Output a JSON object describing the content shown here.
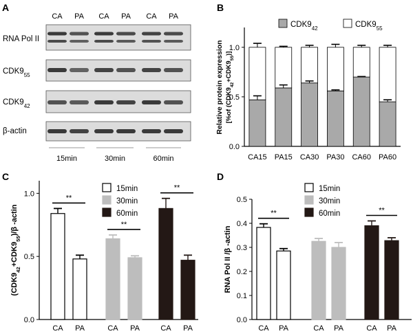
{
  "panels": {
    "A": "A",
    "B": "B",
    "C": "C",
    "D": "D"
  },
  "colors": {
    "white": "#ffffff",
    "gray": "#bdbdbd",
    "dark": "#231815",
    "stackGray": "#a9a9a9",
    "blotBg": "#dcdcdc",
    "band": "#3a3a3a"
  },
  "blot": {
    "lane_labels": [
      "CA",
      "PA",
      "CA",
      "PA",
      "CA",
      "PA"
    ],
    "rows": [
      {
        "label": "RNA Pol II",
        "sub": ""
      },
      {
        "label": "CDK9",
        "sub": "55"
      },
      {
        "label": "CDK9",
        "sub": "42"
      },
      {
        "label": "β-actin",
        "sub": ""
      }
    ],
    "time_labels": [
      "15min",
      "30min",
      "60min"
    ]
  },
  "chart_data": [
    {
      "panel": "B",
      "type": "bar",
      "stacked": true,
      "categories": [
        "CA15",
        "PA15",
        "CA30",
        "PA30",
        "CA60",
        "PA60"
      ],
      "series": [
        {
          "name": "CDK9₄₂",
          "values": [
            0.47,
            0.59,
            0.64,
            0.56,
            0.7,
            0.45
          ],
          "errors": [
            0.04,
            0.03,
            0.02,
            0.01,
            0.005,
            0.02
          ]
        },
        {
          "name": "CDK9₅₅",
          "values": [
            0.53,
            0.41,
            0.36,
            0.44,
            0.3,
            0.55
          ],
          "errors": [
            0.04,
            0.01,
            0.02,
            0.03,
            0.02,
            0.02
          ]
        }
      ],
      "legend": [
        {
          "base": "CDK9",
          "sub": "42"
        },
        {
          "base": "CDK9",
          "sub": "55"
        }
      ],
      "ylabel_line1": "Relative protein expression",
      "ylabel_line2": {
        "a": "[%of (CDK9",
        "s1": "42",
        "b": "+CDK9",
        "s2": "55",
        "c": ")]"
      },
      "yticks": [
        "0.0",
        "0.5",
        "1.0"
      ],
      "ylim": [
        0,
        1.2
      ]
    },
    {
      "panel": "C",
      "type": "bar",
      "groups": [
        {
          "time": "15min",
          "labels": [
            "CA",
            "PA"
          ],
          "values": [
            0.84,
            0.48
          ],
          "errors": [
            0.04,
            0.03
          ],
          "sig": "**"
        },
        {
          "time": "30min",
          "labels": [
            "CA",
            "PA"
          ],
          "values": [
            0.64,
            0.49
          ],
          "errors": [
            0.03,
            0.015
          ],
          "sig": "**"
        },
        {
          "time": "60min",
          "labels": [
            "CA",
            "PA"
          ],
          "values": [
            0.88,
            0.47
          ],
          "errors": [
            0.08,
            0.04
          ],
          "sig": "**"
        }
      ],
      "legend": [
        "15min",
        "30min",
        "60min"
      ],
      "ylabel": {
        "a": "(CDK9",
        "s1": "42",
        "b": "+CDK9",
        "s2": "55",
        "c": ")/β -actin"
      },
      "yticks": [
        "0.0",
        "0.5",
        "1.0"
      ],
      "ylim": [
        0,
        1.1
      ]
    },
    {
      "panel": "D",
      "type": "bar",
      "groups": [
        {
          "time": "15min",
          "labels": [
            "CA",
            "PA"
          ],
          "values": [
            0.383,
            0.285
          ],
          "errors": [
            0.015,
            0.01
          ],
          "sig": "**"
        },
        {
          "time": "30min",
          "labels": [
            "CA",
            "PA"
          ],
          "values": [
            0.325,
            0.3
          ],
          "errors": [
            0.012,
            0.02
          ],
          "sig": ""
        },
        {
          "time": "60min",
          "labels": [
            "CA",
            "PA"
          ],
          "values": [
            0.39,
            0.328
          ],
          "errors": [
            0.02,
            0.012
          ],
          "sig": "**"
        }
      ],
      "legend": [
        "15min",
        "30min",
        "60min"
      ],
      "ylabel": "RNA Pol II /β -actin",
      "yticks": [
        "0.0",
        "0.1",
        "0.2",
        "0.3",
        "0.4",
        "0.5"
      ],
      "ylim": [
        0,
        0.5
      ]
    }
  ]
}
